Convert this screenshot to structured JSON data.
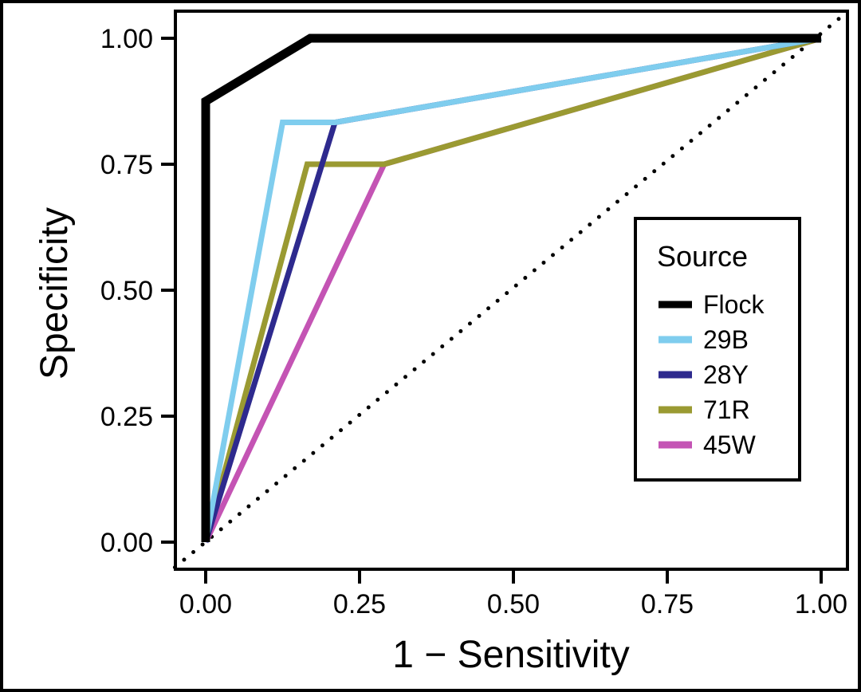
{
  "chart_data": {
    "type": "line",
    "xlabel": "1 − Sensitivity",
    "ylabel": "Specificity",
    "xlim": [
      -0.05,
      1.04
    ],
    "ylim": [
      -0.05,
      1.05
    ],
    "x_ticks": [
      "0.00",
      "0.25",
      "0.50",
      "0.75",
      "1.00"
    ],
    "y_ticks": [
      "0.00",
      "0.25",
      "0.50",
      "0.75",
      "1.00"
    ],
    "legend": {
      "title": "Source",
      "placement": "right"
    },
    "reference_line": {
      "style": "dotted",
      "color": "#000000",
      "x": [
        -0.05,
        1.04
      ],
      "y": [
        -0.05,
        1.05
      ]
    },
    "series": [
      {
        "name": "Flock",
        "color": "#000000",
        "x": [
          0,
          0,
          0.17,
          1.0
        ],
        "y": [
          0,
          0.875,
          1.0,
          1.0
        ]
      },
      {
        "name": "29B",
        "color": "#7fcdee",
        "x": [
          0,
          0.125,
          0.21,
          1.0
        ],
        "y": [
          0,
          0.833,
          0.833,
          1.0
        ]
      },
      {
        "name": "28Y",
        "color": "#2e2a8e",
        "x": [
          0,
          0.21,
          1.0
        ],
        "y": [
          0,
          0.833,
          1.0
        ]
      },
      {
        "name": "71R",
        "color": "#9a9a32",
        "x": [
          0,
          0.165,
          0.29,
          1.0
        ],
        "y": [
          0,
          0.75,
          0.75,
          1.0
        ]
      },
      {
        "name": "45W",
        "color": "#c454b4",
        "x": [
          0,
          0.29,
          1.0
        ],
        "y": [
          0,
          0.75,
          1.0
        ]
      }
    ]
  }
}
